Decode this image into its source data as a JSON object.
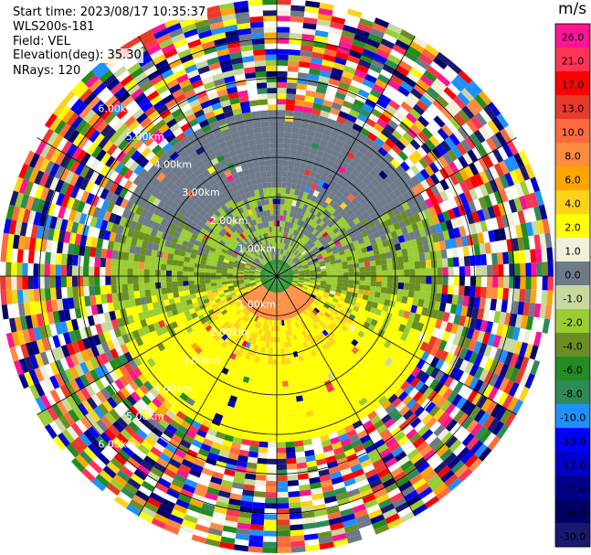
{
  "header": {
    "start_time": "Start time: 2023/08/17 10:35:37",
    "instrument": "WLS200s-181",
    "field": "Field: VEL",
    "elevation": "Elevation(deg): 35.30",
    "nrays": "NRays: 120"
  },
  "chart_data": {
    "type": "heatmap",
    "projection": "polar-ppi",
    "field": "VEL",
    "units": "m/s",
    "n_rays": 120,
    "range_max_km": 7.0,
    "range_ring_labels": [
      "1.00km",
      "2.00km",
      "3.00km",
      "4.00km",
      "5.00km",
      "6.00km"
    ],
    "colorbar": {
      "title": "m/s",
      "ticks": [
        "26.0",
        "21.0",
        "17.0",
        "13.0",
        "10.0",
        "8.0",
        "6.0",
        "4.0",
        "2.0",
        "1.0",
        "0.0",
        "-1.0",
        "-2.0",
        "-4.0",
        "-6.0",
        "-8.0",
        "-10.0",
        "-13.0",
        "-17.0",
        "-21.0",
        "-26.0",
        "-30.0"
      ],
      "colors": [
        "#ff1493",
        "#ff3355",
        "#ff0000",
        "#e83a2a",
        "#ff6a3d",
        "#ff8c40",
        "#ffa500",
        "#ffd21a",
        "#ffff00",
        "#f0f0d8",
        "#6e7a8a",
        "#c8d9a0",
        "#9acd32",
        "#6b8e23",
        "#228b22",
        "#2e8b57",
        "#1e90ff",
        "#0000ff",
        "#0000cd",
        "#00008b",
        "#000066",
        "#191970"
      ]
    },
    "pattern": {
      "near_range_km": 4.2,
      "near_inbound_color": "#6e7a8a",
      "near_outbound_color": "#ffff00",
      "center_color": "#228b22",
      "south_center_color": "#ff8c40"
    }
  }
}
